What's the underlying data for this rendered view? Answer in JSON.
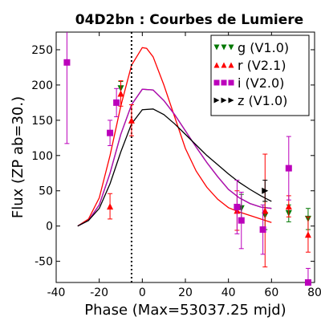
{
  "chart_data": {
    "type": "scatter",
    "title": "04D2bn : Courbes de Lumiere",
    "xlabel": "Phase (Max=53037.25 mjd)",
    "ylabel": "Flux (ZP ab=30.)",
    "xlim": [
      -40,
      80
    ],
    "ylim": [
      -80,
      275
    ],
    "xticks": [
      -40,
      -20,
      0,
      20,
      40,
      60,
      80
    ],
    "yticks": [
      -50,
      0,
      50,
      100,
      150,
      200,
      250
    ],
    "xtick_labels": [
      "-40",
      "-20",
      "0",
      "20",
      "40",
      "60",
      "80"
    ],
    "ytick_labels": [
      "-50",
      "0",
      "50",
      "100",
      "150",
      "200",
      "250"
    ],
    "vline": -5,
    "grid": false,
    "legend_position": "top-right",
    "series": [
      {
        "name": "g (V1.0)",
        "color": "#007700",
        "marker": "triangle-down",
        "points": [
          {
            "x": -10,
            "y": 195,
            "err": 10
          },
          {
            "x": 46,
            "y": 25,
            "err": 20
          },
          {
            "x": 57,
            "y": 15,
            "err": 20
          },
          {
            "x": 68,
            "y": 18,
            "err": 12
          },
          {
            "x": 77,
            "y": 10,
            "err": 15
          }
        ],
        "curve": [
          [
            -30,
            0
          ],
          [
            -25,
            8
          ],
          [
            -20,
            30
          ],
          [
            -15,
            75
          ],
          [
            -10,
            130
          ],
          [
            -5,
            172
          ],
          [
            0,
            194
          ],
          [
            5,
            193
          ],
          [
            10,
            178
          ],
          [
            15,
            158
          ],
          [
            20,
            135
          ],
          [
            25,
            112
          ],
          [
            30,
            90
          ],
          [
            35,
            70
          ],
          [
            40,
            52
          ],
          [
            45,
            40
          ],
          [
            50,
            32
          ],
          [
            55,
            27
          ],
          [
            60,
            25
          ]
        ]
      },
      {
        "name": "r (V2.1)",
        "color": "#ff0000",
        "marker": "triangle-up",
        "points": [
          {
            "x": -15,
            "y": 28,
            "err": 18
          },
          {
            "x": -10,
            "y": 188,
            "err": 18
          },
          {
            "x": -5,
            "y": 150,
            "err": 22
          },
          {
            "x": 44,
            "y": 22,
            "err": 28
          },
          {
            "x": 57,
            "y": 22,
            "err": 80
          },
          {
            "x": 68,
            "y": 28,
            "err": 15
          },
          {
            "x": 77,
            "y": -12,
            "err": 25
          }
        ],
        "curve": [
          [
            -30,
            0
          ],
          [
            -25,
            10
          ],
          [
            -20,
            40
          ],
          [
            -15,
            100
          ],
          [
            -10,
            170
          ],
          [
            -5,
            228
          ],
          [
            0,
            253
          ],
          [
            2,
            252
          ],
          [
            5,
            240
          ],
          [
            10,
            200
          ],
          [
            15,
            155
          ],
          [
            20,
            110
          ],
          [
            25,
            78
          ],
          [
            30,
            55
          ],
          [
            35,
            38
          ],
          [
            40,
            26
          ],
          [
            45,
            20
          ],
          [
            50,
            15
          ],
          [
            55,
            10
          ],
          [
            60,
            5
          ]
        ]
      },
      {
        "name": "i (V2.0)",
        "color": "#bb00bb",
        "marker": "square",
        "points": [
          {
            "x": -35,
            "y": 232,
            "err": 115
          },
          {
            "x": -15,
            "y": 132,
            "err": 18
          },
          {
            "x": -12,
            "y": 175,
            "err": 20
          },
          {
            "x": 44,
            "y": 27,
            "err": 38
          },
          {
            "x": 46,
            "y": 8,
            "err": 40
          },
          {
            "x": 56,
            "y": -5,
            "err": 35
          },
          {
            "x": 68,
            "y": 82,
            "err": 45
          },
          {
            "x": 77,
            "y": -80,
            "err": 20
          }
        ],
        "curve": [
          [
            -30,
            0
          ],
          [
            -25,
            8
          ],
          [
            -20,
            30
          ],
          [
            -15,
            75
          ],
          [
            -10,
            130
          ],
          [
            -5,
            172
          ],
          [
            0,
            194
          ],
          [
            5,
            193
          ],
          [
            10,
            178
          ],
          [
            15,
            158
          ],
          [
            20,
            135
          ],
          [
            25,
            112
          ],
          [
            30,
            90
          ],
          [
            35,
            70
          ],
          [
            40,
            52
          ],
          [
            45,
            40
          ],
          [
            50,
            32
          ],
          [
            55,
            27
          ],
          [
            60,
            25
          ]
        ]
      },
      {
        "name": "z (V1.0)",
        "color": "#000000",
        "marker": "triangle-right",
        "points": [
          {
            "x": 57,
            "y": 50,
            "err": 15
          }
        ],
        "curve": [
          [
            -30,
            0
          ],
          [
            -25,
            8
          ],
          [
            -20,
            25
          ],
          [
            -15,
            60
          ],
          [
            -10,
            105
          ],
          [
            -5,
            145
          ],
          [
            0,
            165
          ],
          [
            5,
            166
          ],
          [
            10,
            158
          ],
          [
            15,
            145
          ],
          [
            20,
            130
          ],
          [
            25,
            115
          ],
          [
            30,
            100
          ],
          [
            35,
            87
          ],
          [
            40,
            74
          ],
          [
            45,
            62
          ],
          [
            50,
            52
          ],
          [
            55,
            43
          ],
          [
            60,
            35
          ]
        ]
      }
    ]
  }
}
